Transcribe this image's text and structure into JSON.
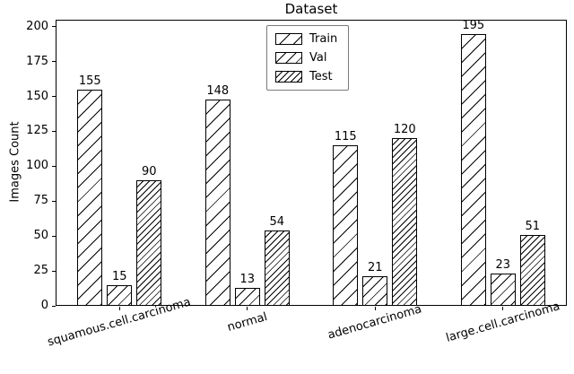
{
  "chart_data": {
    "type": "bar",
    "title": "Dataset",
    "xlabel": "",
    "ylabel": "Images Count",
    "categories": [
      "squamous.cell.carcinoma",
      "normal",
      "adenocarcinoma",
      "large.cell.carcinoma"
    ],
    "series": [
      {
        "name": "Train",
        "values": [
          155,
          148,
          115,
          195
        ],
        "hatch": "/"
      },
      {
        "name": "Val",
        "values": [
          15,
          13,
          21,
          23
        ],
        "hatch": "/"
      },
      {
        "name": "Test",
        "values": [
          90,
          54,
          120,
          51
        ],
        "hatch": "//"
      }
    ],
    "ylim": [
      0,
      205
    ],
    "yticks": [
      0,
      25,
      50,
      75,
      100,
      125,
      150,
      175,
      200
    ],
    "legend_position": "upper center",
    "grid": false,
    "bar_fill_color": "#ffffff",
    "bar_edge_color": "#000000",
    "hatch_color": "#000000"
  }
}
